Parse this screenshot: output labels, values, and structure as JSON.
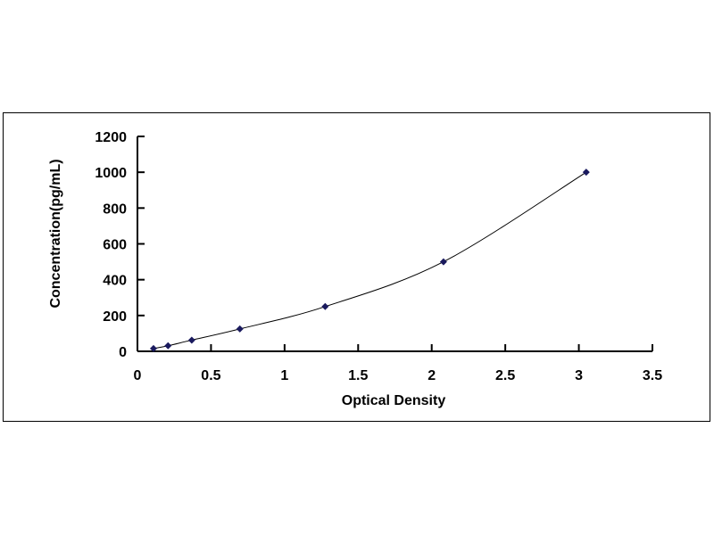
{
  "chart_data": {
    "type": "scatter",
    "xlabel": "Optical Density",
    "ylabel": "Concentration(pg/mL)",
    "xlim": [
      0,
      3.5
    ],
    "ylim": [
      0,
      1200
    ],
    "xticks": [
      "0",
      "0.5",
      "1",
      "1.5",
      "2",
      "2.5",
      "3",
      "3.5"
    ],
    "yticks": [
      "0",
      "200",
      "400",
      "600",
      "800",
      "1000",
      "1200"
    ],
    "grid": false,
    "trendline": "smooth curve",
    "marker": "diamond",
    "colors": {
      "marker": "#1a1a5e",
      "line": "#000000"
    },
    "points": [
      {
        "x": 0.109,
        "y": 15.63
      },
      {
        "x": 0.208,
        "y": 31.25
      },
      {
        "x": 0.369,
        "y": 62.5
      },
      {
        "x": 0.696,
        "y": 125
      },
      {
        "x": 1.276,
        "y": 250
      },
      {
        "x": 2.08,
        "y": 500
      },
      {
        "x": 3.05,
        "y": 1000
      }
    ]
  }
}
